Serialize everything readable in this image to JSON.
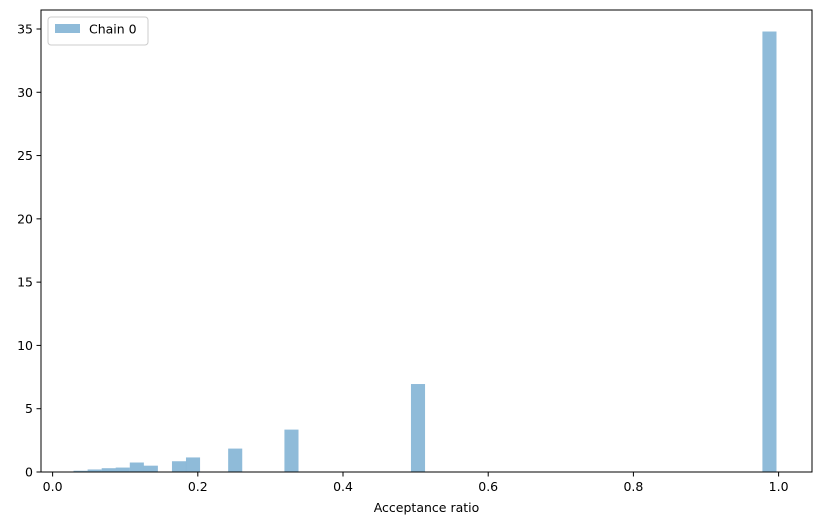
{
  "chart_data": {
    "type": "bar",
    "title": "",
    "xlabel": "Acceptance ratio",
    "ylabel": "",
    "xlim": [
      -0.016,
      1.046
    ],
    "ylim": [
      0,
      36.5
    ],
    "xticks": [
      0.0,
      0.2,
      0.4,
      0.6,
      0.8,
      1.0
    ],
    "xtick_labels": [
      "0.0",
      "0.2",
      "0.4",
      "0.6",
      "0.8",
      "1.0"
    ],
    "yticks": [
      0,
      5,
      10,
      15,
      20,
      25,
      30,
      35
    ],
    "ytick_labels": [
      "0",
      "5",
      "10",
      "15",
      "20",
      "25",
      "30",
      "35"
    ],
    "grid": false,
    "legend_position": "top-left",
    "bin_width": 0.0194,
    "series": [
      {
        "name": "Chain 0",
        "color": "#1f77b4",
        "opacity": 0.5,
        "bins": [
          {
            "x": 0.0385,
            "value": 0.1
          },
          {
            "x": 0.0579,
            "value": 0.2
          },
          {
            "x": 0.0773,
            "value": 0.3
          },
          {
            "x": 0.0966,
            "value": 0.35
          },
          {
            "x": 0.116,
            "value": 0.75
          },
          {
            "x": 0.1353,
            "value": 0.5
          },
          {
            "x": 0.1741,
            "value": 0.85
          },
          {
            "x": 0.1934,
            "value": 1.15
          },
          {
            "x": 0.2515,
            "value": 1.85
          },
          {
            "x": 0.329,
            "value": 3.35
          },
          {
            "x": 0.5033,
            "value": 6.95
          },
          {
            "x": 0.9874,
            "value": 34.8
          }
        ]
      }
    ]
  }
}
